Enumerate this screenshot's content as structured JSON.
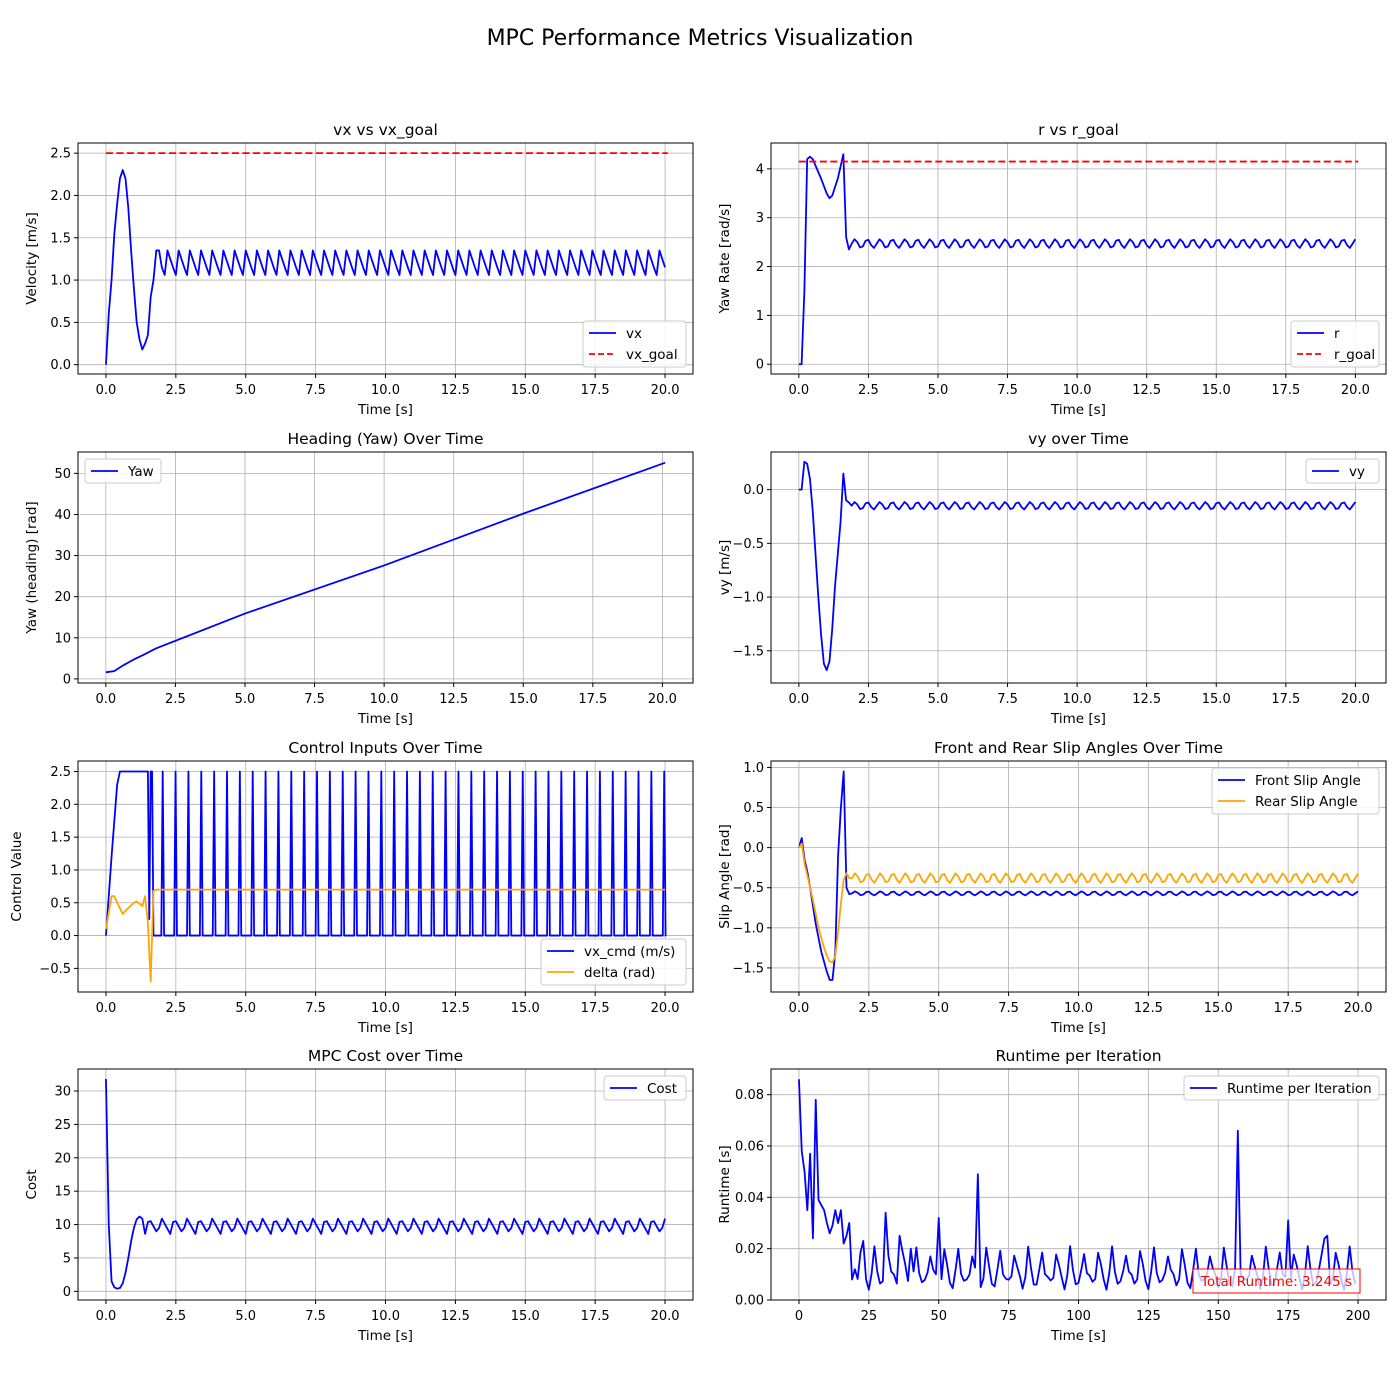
{
  "figure": {
    "suptitle": "MPC Performance Metrics Visualization"
  },
  "chart_data": [
    {
      "id": "p1",
      "type": "line",
      "title": "vx vs vx_goal",
      "xlabel": "Time [s]",
      "ylabel": "Velocity [m/s]",
      "xlim": [
        -1.0,
        21.0
      ],
      "ylim": [
        -0.11,
        2.62
      ],
      "xticks": [
        0,
        2.5,
        5,
        7.5,
        10,
        12.5,
        15,
        17.5,
        20
      ],
      "yticks": [
        0,
        0.5,
        1,
        1.5,
        2,
        2.5
      ],
      "xtick_labels": [
        "0.0",
        "2.5",
        "5.0",
        "7.5",
        "10.0",
        "12.5",
        "15.0",
        "17.5",
        "20.0"
      ],
      "ytick_labels": [
        "0.0",
        "0.5",
        "1.0",
        "1.5",
        "2.0",
        "2.5"
      ],
      "grid": true,
      "legend": "lower-right",
      "series": [
        {
          "name": "vx",
          "color": "#0000ff",
          "dash": "solid",
          "gen": "vx"
        },
        {
          "name": "vx_goal",
          "color": "#ff0000",
          "dash": "dashed",
          "x": [
            0,
            20.1
          ],
          "y": [
            2.5,
            2.5
          ]
        }
      ]
    },
    {
      "id": "p2",
      "type": "line",
      "title": "r vs r_goal",
      "xlabel": "Time [s]",
      "ylabel": "Yaw Rate [rad/s]",
      "xlim": [
        -1.0,
        21.1
      ],
      "ylim": [
        -0.2,
        4.53
      ],
      "xticks": [
        0,
        2.5,
        5,
        7.5,
        10,
        12.5,
        15,
        17.5,
        20
      ],
      "yticks": [
        0,
        1,
        2,
        3,
        4
      ],
      "xtick_labels": [
        "0.0",
        "2.5",
        "5.0",
        "7.5",
        "10.0",
        "12.5",
        "15.0",
        "17.5",
        "20.0"
      ],
      "ytick_labels": [
        "0",
        "1",
        "2",
        "3",
        "4"
      ],
      "grid": true,
      "legend": "lower-right",
      "series": [
        {
          "name": "r",
          "color": "#0000ff",
          "dash": "solid",
          "gen": "r"
        },
        {
          "name": "r_goal",
          "color": "#ff0000",
          "dash": "dashed",
          "x": [
            0,
            20.1
          ],
          "y": [
            4.15,
            4.15
          ]
        }
      ]
    },
    {
      "id": "p3",
      "type": "line",
      "title": "Heading (Yaw) Over Time",
      "xlabel": "Time [s]",
      "ylabel": "Yaw (heading) [rad]",
      "xlim": [
        -1.0,
        21.1
      ],
      "ylim": [
        -1.0,
        55.2
      ],
      "xticks": [
        0,
        2.5,
        5,
        7.5,
        10,
        12.5,
        15,
        17.5,
        20
      ],
      "yticks": [
        0,
        10,
        20,
        30,
        40,
        50
      ],
      "xtick_labels": [
        "0.0",
        "2.5",
        "5.0",
        "7.5",
        "10.0",
        "12.5",
        "15.0",
        "17.5",
        "20.0"
      ],
      "ytick_labels": [
        "0",
        "10",
        "20",
        "30",
        "40",
        "50"
      ],
      "grid": true,
      "legend": "upper-left",
      "series": [
        {
          "name": "Yaw",
          "color": "#0000ff",
          "dash": "solid",
          "x": [
            0,
            0.3,
            0.6,
            1.0,
            1.4,
            1.8,
            5,
            10,
            15,
            20.1
          ],
          "y": [
            1.6,
            1.9,
            3.2,
            4.7,
            6.0,
            7.4,
            15.9,
            27.6,
            40.2,
            52.6
          ]
        }
      ]
    },
    {
      "id": "p4",
      "type": "line",
      "title": "vy over Time",
      "xlabel": "Time [s]",
      "ylabel": "vy [m/s]",
      "xlim": [
        -1.0,
        21.1
      ],
      "ylim": [
        -1.8,
        0.35
      ],
      "xticks": [
        0,
        2.5,
        5,
        7.5,
        10,
        12.5,
        15,
        17.5,
        20
      ],
      "yticks": [
        -1.5,
        -1.0,
        -0.5,
        0.0
      ],
      "xtick_labels": [
        "0.0",
        "2.5",
        "5.0",
        "7.5",
        "10.0",
        "12.5",
        "15.0",
        "17.5",
        "20.0"
      ],
      "ytick_labels": [
        "−1.5",
        "−1.0",
        "−0.5",
        "0.0"
      ],
      "grid": true,
      "legend": "upper-right",
      "series": [
        {
          "name": "vy",
          "color": "#0000ff",
          "dash": "solid",
          "gen": "vy"
        }
      ]
    },
    {
      "id": "p5",
      "type": "line",
      "title": "Control Inputs Over Time",
      "xlabel": "Time [s]",
      "ylabel": "Control Value",
      "xlim": [
        -1.0,
        21.0
      ],
      "ylim": [
        -0.86,
        2.66
      ],
      "xticks": [
        0,
        2.5,
        5,
        7.5,
        10,
        12.5,
        15,
        17.5,
        20
      ],
      "yticks": [
        -0.5,
        0,
        0.5,
        1,
        1.5,
        2,
        2.5
      ],
      "xtick_labels": [
        "0.0",
        "2.5",
        "5.0",
        "7.5",
        "10.0",
        "12.5",
        "15.0",
        "17.5",
        "20.0"
      ],
      "ytick_labels": [
        "−0.5",
        "0.0",
        "0.5",
        "1.0",
        "1.5",
        "2.0",
        "2.5"
      ],
      "grid": true,
      "legend": "lower-right",
      "series": [
        {
          "name": "vx_cmd (m/s)",
          "color": "#0000ff",
          "dash": "solid",
          "gen": "vxcmd"
        },
        {
          "name": "delta (rad)",
          "color": "#ffa500",
          "dash": "solid",
          "gen": "delta"
        }
      ]
    },
    {
      "id": "p6",
      "type": "line",
      "title": "Front and Rear Slip Angles Over Time",
      "xlabel": "Time [s]",
      "ylabel": "Slip Angle [rad]",
      "xlim": [
        -1.0,
        21.0
      ],
      "ylim": [
        -1.8,
        1.08
      ],
      "xticks": [
        0,
        2.5,
        5,
        7.5,
        10,
        12.5,
        15,
        17.5,
        20
      ],
      "yticks": [
        -1.5,
        -1.0,
        -0.5,
        0.0,
        0.5,
        1.0
      ],
      "xtick_labels": [
        "0.0",
        "2.5",
        "5.0",
        "7.5",
        "10.0",
        "12.5",
        "15.0",
        "17.5",
        "20.0"
      ],
      "ytick_labels": [
        "−1.5",
        "−1.0",
        "−0.5",
        "0.0",
        "0.5",
        "1.0"
      ],
      "grid": true,
      "legend": "upper-right",
      "series": [
        {
          "name": "Front Slip Angle",
          "color": "#0000ff",
          "dash": "solid",
          "gen": "front"
        },
        {
          "name": "Rear Slip Angle",
          "color": "#ffa500",
          "dash": "solid",
          "gen": "rear"
        }
      ]
    },
    {
      "id": "p7",
      "type": "line",
      "title": "MPC Cost over Time",
      "xlabel": "Time [s]",
      "ylabel": "Cost",
      "xlim": [
        -1.0,
        21.0
      ],
      "ylim": [
        -1.3,
        33.3
      ],
      "xticks": [
        0,
        2.5,
        5,
        7.5,
        10,
        12.5,
        15,
        17.5,
        20
      ],
      "yticks": [
        0,
        5,
        10,
        15,
        20,
        25,
        30
      ],
      "xtick_labels": [
        "0.0",
        "2.5",
        "5.0",
        "7.5",
        "10.0",
        "12.5",
        "15.0",
        "17.5",
        "20.0"
      ],
      "ytick_labels": [
        "0",
        "5",
        "10",
        "15",
        "20",
        "25",
        "30"
      ],
      "grid": true,
      "legend": "upper-right",
      "series": [
        {
          "name": "Cost",
          "color": "#0000ff",
          "dash": "solid",
          "gen": "cost"
        }
      ]
    },
    {
      "id": "p8",
      "type": "line",
      "title": "Runtime per Iteration",
      "xlabel": "Time [s]",
      "ylabel": "Runtime [s]",
      "xlim": [
        -10,
        210
      ],
      "ylim": [
        0,
        0.09
      ],
      "xticks": [
        0,
        25,
        50,
        75,
        100,
        125,
        150,
        175,
        200
      ],
      "yticks": [
        0,
        0.02,
        0.04,
        0.06,
        0.08
      ],
      "xtick_labels": [
        "0",
        "25",
        "50",
        "75",
        "100",
        "125",
        "150",
        "175",
        "200"
      ],
      "ytick_labels": [
        "0.00",
        "0.02",
        "0.04",
        "0.06",
        "0.08"
      ],
      "grid": true,
      "legend": "upper-right",
      "annotation": "Total Runtime: 3.245 s",
      "series": [
        {
          "name": "Runtime per Iteration",
          "color": "#0000ff",
          "dash": "solid",
          "gen": "runtime"
        }
      ]
    }
  ]
}
